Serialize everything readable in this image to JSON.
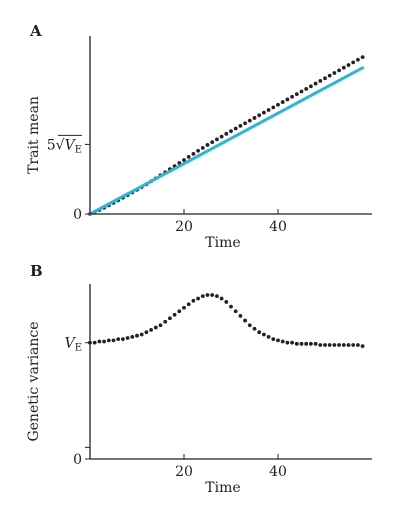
{
  "chart_data": [
    {
      "type": "scatter",
      "panel_label": "A",
      "xlabel": "Time",
      "ylabel": "Trait mean",
      "xlim": [
        0,
        60
      ],
      "ylim": [
        0,
        12.5
      ],
      "xticks": [
        {
          "value": 20,
          "label": "20"
        },
        {
          "value": 40,
          "label": "40"
        }
      ],
      "yticks": [
        {
          "value": 0,
          "label": "0"
        },
        {
          "value": 5,
          "label": "5√V_E",
          "prefix": "5",
          "root": "V",
          "subscript": "E"
        }
      ],
      "grid": false,
      "series": [
        {
          "style": "dots",
          "color": "#222222",
          "x": [
            0,
            1,
            2,
            3,
            4,
            5,
            6,
            7,
            8,
            9,
            10,
            11,
            12,
            13,
            14,
            15,
            16,
            17,
            18,
            19,
            20,
            21,
            22,
            23,
            24,
            25,
            26,
            27,
            28,
            29,
            30,
            31,
            32,
            33,
            34,
            35,
            36,
            37,
            38,
            39,
            40,
            41,
            42,
            43,
            44,
            45,
            46,
            47,
            48,
            49,
            50,
            51,
            52,
            53,
            54,
            55,
            56,
            57,
            58
          ],
          "y": [
            0.0,
            0.14,
            0.29,
            0.45,
            0.62,
            0.8,
            0.98,
            1.17,
            1.36,
            1.55,
            1.74,
            1.94,
            2.14,
            2.35,
            2.56,
            2.78,
            3.0,
            3.22,
            3.44,
            3.66,
            3.88,
            4.1,
            4.32,
            4.54,
            4.75,
            4.96,
            5.16,
            5.36,
            5.56,
            5.76,
            5.95,
            6.14,
            6.33,
            6.52,
            6.71,
            6.9,
            7.09,
            7.28,
            7.47,
            7.66,
            7.85,
            8.04,
            8.23,
            8.42,
            8.61,
            8.8,
            8.99,
            9.18,
            9.37,
            9.56,
            9.75,
            9.94,
            10.13,
            10.32,
            10.51,
            10.7,
            10.89,
            11.08,
            11.27
          ]
        },
        {
          "style": "line",
          "color": "#29b6d8",
          "x": [
            0,
            58
          ],
          "y": [
            0,
            10.5
          ]
        }
      ]
    },
    {
      "type": "scatter",
      "panel_label": "B",
      "xlabel": "Time",
      "ylabel": "Genetic variance",
      "xlim": [
        0,
        60
      ],
      "ylim": [
        0,
        1.47
      ],
      "xticks": [
        {
          "value": 20,
          "label": "20"
        },
        {
          "value": 40,
          "label": "40"
        }
      ],
      "yticks": [
        {
          "value": 0,
          "label": "0"
        },
        {
          "value": 0.1,
          "label": ""
        },
        {
          "value": 1,
          "label": "V_E",
          "root": "V",
          "subscript": "E"
        }
      ],
      "grid": false,
      "series": [
        {
          "style": "dots",
          "color": "#222222",
          "x": [
            0,
            1,
            2,
            3,
            4,
            5,
            6,
            7,
            8,
            9,
            10,
            11,
            12,
            13,
            14,
            15,
            16,
            17,
            18,
            19,
            20,
            21,
            22,
            23,
            24,
            25,
            26,
            27,
            28,
            29,
            30,
            31,
            32,
            33,
            34,
            35,
            36,
            37,
            38,
            39,
            40,
            41,
            42,
            43,
            44,
            45,
            46,
            47,
            48,
            49,
            50,
            51,
            52,
            53,
            54,
            55,
            56,
            57,
            58
          ],
          "y": [
            1.0,
            1.0,
            1.01,
            1.01,
            1.02,
            1.02,
            1.03,
            1.03,
            1.04,
            1.05,
            1.06,
            1.07,
            1.09,
            1.11,
            1.13,
            1.15,
            1.18,
            1.21,
            1.24,
            1.27,
            1.3,
            1.33,
            1.36,
            1.38,
            1.4,
            1.41,
            1.41,
            1.4,
            1.38,
            1.35,
            1.31,
            1.27,
            1.23,
            1.19,
            1.15,
            1.12,
            1.09,
            1.07,
            1.05,
            1.03,
            1.02,
            1.01,
            1.0,
            1.0,
            0.99,
            0.99,
            0.99,
            0.99,
            0.99,
            0.98,
            0.98,
            0.98,
            0.98,
            0.98,
            0.98,
            0.98,
            0.98,
            0.98,
            0.97
          ]
        }
      ]
    }
  ]
}
